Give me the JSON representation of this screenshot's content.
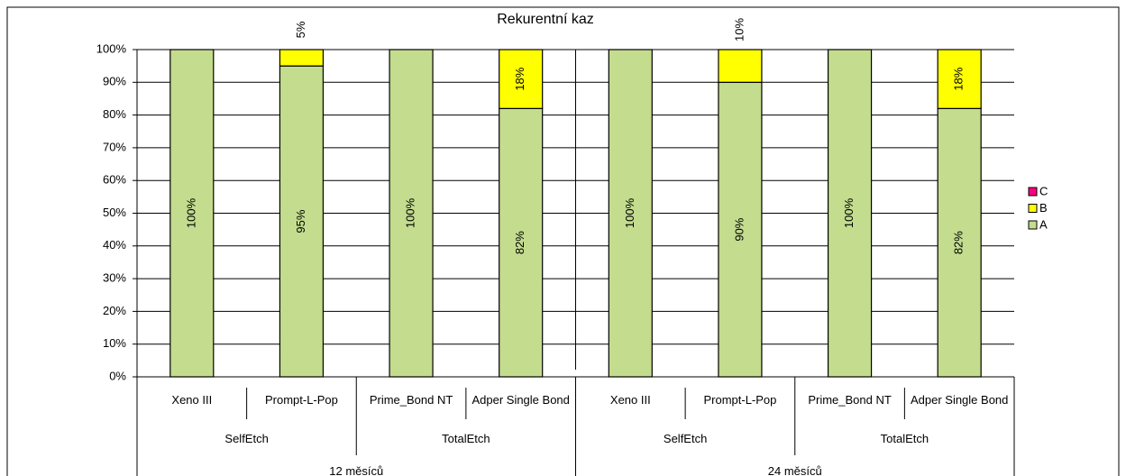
{
  "chart_data": {
    "type": "bar",
    "stacked": true,
    "title": "Rekurentní kaz",
    "categories": [
      "Xeno III",
      "Prompt-L-Pop",
      "Prime_Bond NT",
      "Adper Single Bond",
      "Xeno III",
      "Prompt-L-Pop",
      "Prime_Bond NT",
      "Adper Single Bond"
    ],
    "groups": [
      "SelfEtch",
      "TotalEtch",
      "SelfEtch",
      "TotalEtch"
    ],
    "periods": [
      "12 měsíců",
      "24 měsíců"
    ],
    "series": [
      {
        "name": "A",
        "color": "#c3dc8e",
        "values": [
          100,
          95,
          100,
          82,
          100,
          90,
          100,
          82
        ],
        "value_labels": [
          "100%",
          "95%",
          "100%",
          "82%",
          "100%",
          "90%",
          "100%",
          "82%"
        ]
      },
      {
        "name": "B",
        "color": "#ffff00",
        "values": [
          0,
          5,
          0,
          18,
          0,
          10,
          0,
          18
        ],
        "value_labels": [
          null,
          "5%",
          null,
          "18%",
          null,
          "10%",
          null,
          "18%"
        ]
      },
      {
        "name": "C",
        "color": "#ff0080",
        "values": [
          0,
          0,
          0,
          0,
          0,
          0,
          0,
          0
        ],
        "value_labels": [
          null,
          null,
          null,
          null,
          null,
          null,
          null,
          null
        ]
      }
    ],
    "ylim": [
      0,
      100
    ],
    "yticks": [
      {
        "value": 0,
        "label": "0%"
      },
      {
        "value": 10,
        "label": "10%"
      },
      {
        "value": 20,
        "label": "20%"
      },
      {
        "value": 30,
        "label": "30%"
      },
      {
        "value": 40,
        "label": "40%"
      },
      {
        "value": 50,
        "label": "50%"
      },
      {
        "value": 60,
        "label": "60%"
      },
      {
        "value": 70,
        "label": "70%"
      },
      {
        "value": 80,
        "label": "80%"
      },
      {
        "value": 90,
        "label": "90%"
      },
      {
        "value": 100,
        "label": "100%"
      }
    ],
    "grid": true,
    "legend": "right"
  }
}
